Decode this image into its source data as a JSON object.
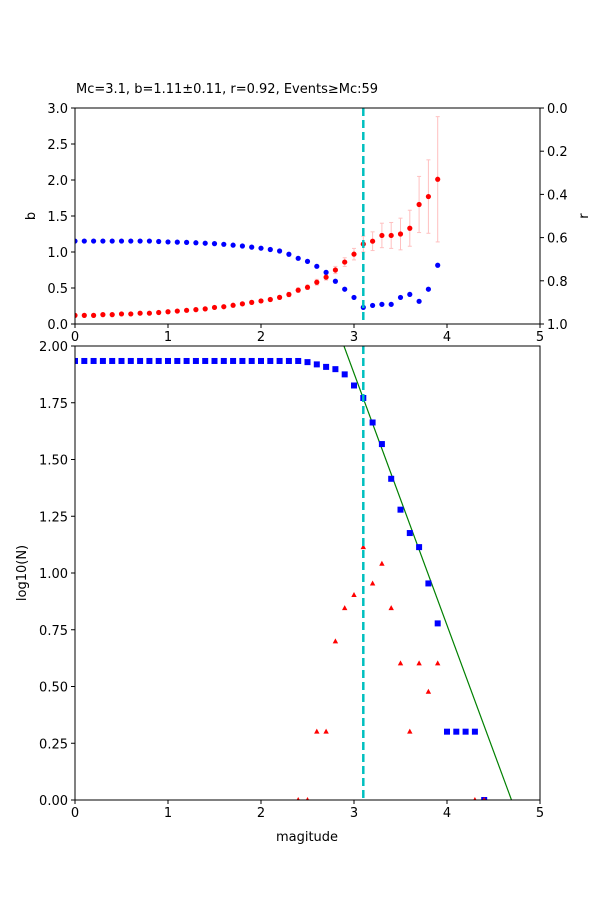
{
  "chart_data": [
    {
      "type": "scatter",
      "title": "Mc=3.1, b=1.11±0.11, r=0.92, Events≥Mc:59",
      "xlabel": "",
      "ylabel": "b",
      "ylabel_right": "r",
      "xlim": [
        0,
        5
      ],
      "ylim": [
        0,
        3
      ],
      "ylim_right": [
        1,
        0
      ],
      "xticks": [
        "0",
        "1",
        "2",
        "3",
        "4",
        "5"
      ],
      "yticks": [
        "0.0",
        "0.5",
        "1.0",
        "1.5",
        "2.0",
        "2.5",
        "3.0"
      ],
      "yticks_right": [
        "0.0",
        "0.2",
        "0.4",
        "0.6",
        "0.8",
        "1.0"
      ],
      "mc_line": 3.1,
      "x": [
        0,
        0.1,
        0.2,
        0.3,
        0.4,
        0.5,
        0.6,
        0.7,
        0.8,
        0.9,
        1.0,
        1.1,
        1.2,
        1.3,
        1.4,
        1.5,
        1.6,
        1.7,
        1.8,
        1.9,
        2.0,
        2.1,
        2.2,
        2.3,
        2.4,
        2.5,
        2.6,
        2.7,
        2.8,
        2.9,
        3.0,
        3.1,
        3.2,
        3.3,
        3.4,
        3.5,
        3.6,
        3.7,
        3.8,
        3.9
      ],
      "series": [
        {
          "name": "b",
          "axis": "left",
          "color": "#ff0000",
          "values": [
            0.12,
            0.12,
            0.12,
            0.13,
            0.13,
            0.14,
            0.14,
            0.15,
            0.15,
            0.16,
            0.17,
            0.18,
            0.19,
            0.2,
            0.21,
            0.23,
            0.24,
            0.26,
            0.28,
            0.3,
            0.32,
            0.34,
            0.37,
            0.41,
            0.47,
            0.51,
            0.58,
            0.65,
            0.75,
            0.86,
            0.97,
            1.11,
            1.15,
            1.23,
            1.23,
            1.25,
            1.33,
            1.66,
            1.77,
            2.01
          ],
          "errors": [
            0.01,
            0.01,
            0.01,
            0.01,
            0.01,
            0.01,
            0.01,
            0.01,
            0.01,
            0.01,
            0.01,
            0.01,
            0.01,
            0.01,
            0.01,
            0.01,
            0.01,
            0.01,
            0.02,
            0.02,
            0.02,
            0.02,
            0.02,
            0.03,
            0.03,
            0.03,
            0.04,
            0.04,
            0.05,
            0.06,
            0.08,
            0.11,
            0.13,
            0.17,
            0.18,
            0.22,
            0.25,
            0.39,
            0.51,
            0.87
          ],
          "error_color": "#ffc0c0"
        },
        {
          "name": "r",
          "axis": "right",
          "color": "#0000ff",
          "values": [
            0.616,
            0.616,
            0.616,
            0.616,
            0.616,
            0.616,
            0.616,
            0.616,
            0.616,
            0.618,
            0.62,
            0.621,
            0.622,
            0.624,
            0.626,
            0.628,
            0.631,
            0.635,
            0.639,
            0.644,
            0.649,
            0.655,
            0.662,
            0.677,
            0.696,
            0.71,
            0.733,
            0.761,
            0.802,
            0.839,
            0.877,
            0.923,
            0.914,
            0.909,
            0.909,
            0.877,
            0.863,
            0.895,
            0.839,
            0.728
          ]
        }
      ]
    },
    {
      "type": "scatter",
      "xlabel": "magitude",
      "ylabel": "log10(N)",
      "xlim": [
        0,
        5
      ],
      "ylim": [
        0,
        2
      ],
      "xticks": [
        "0",
        "1",
        "2",
        "3",
        "4",
        "5"
      ],
      "yticks": [
        "0.00",
        "0.25",
        "0.50",
        "0.75",
        "1.00",
        "1.25",
        "1.50",
        "1.75",
        "2.00"
      ],
      "mc_line": 3.1,
      "fit_line": {
        "a": 5.21,
        "b": 1.11,
        "color": "#008000"
      },
      "series": [
        {
          "name": "cumulative",
          "marker": "square",
          "color": "#0000ff",
          "x": [
            0,
            0.1,
            0.2,
            0.3,
            0.4,
            0.5,
            0.6,
            0.7,
            0.8,
            0.9,
            1.0,
            1.1,
            1.2,
            1.3,
            1.4,
            1.5,
            1.6,
            1.7,
            1.8,
            1.9,
            2.0,
            2.1,
            2.2,
            2.3,
            2.4,
            2.5,
            2.6,
            2.7,
            2.8,
            2.9,
            3.0,
            3.1,
            3.2,
            3.3,
            3.4,
            3.5,
            3.6,
            3.7,
            3.8,
            3.9,
            4.0,
            4.1,
            4.2,
            4.3,
            4.4
          ],
          "values": [
            1.934,
            1.934,
            1.934,
            1.934,
            1.934,
            1.934,
            1.934,
            1.934,
            1.934,
            1.934,
            1.934,
            1.934,
            1.934,
            1.934,
            1.934,
            1.934,
            1.934,
            1.934,
            1.934,
            1.934,
            1.934,
            1.934,
            1.934,
            1.934,
            1.934,
            1.929,
            1.919,
            1.908,
            1.898,
            1.875,
            1.826,
            1.771,
            1.663,
            1.568,
            1.415,
            1.279,
            1.176,
            1.114,
            0.954,
            0.778,
            0.301,
            0.301,
            0.301,
            0.301,
            0
          ]
        },
        {
          "name": "non-cumulative",
          "marker": "triangle",
          "color": "#ff0000",
          "x": [
            2.4,
            2.5,
            2.6,
            2.7,
            2.8,
            2.9,
            3.0,
            3.1,
            3.2,
            3.3,
            3.4,
            3.5,
            3.6,
            3.7,
            3.8,
            3.9,
            4.3,
            4.4
          ],
          "values": [
            0,
            0,
            0.301,
            0.301,
            0.699,
            0.845,
            0.903,
            1.114,
            0.954,
            1.041,
            0.845,
            0.602,
            0.301,
            0.602,
            0.477,
            0.602,
            0,
            0
          ]
        }
      ]
    }
  ]
}
